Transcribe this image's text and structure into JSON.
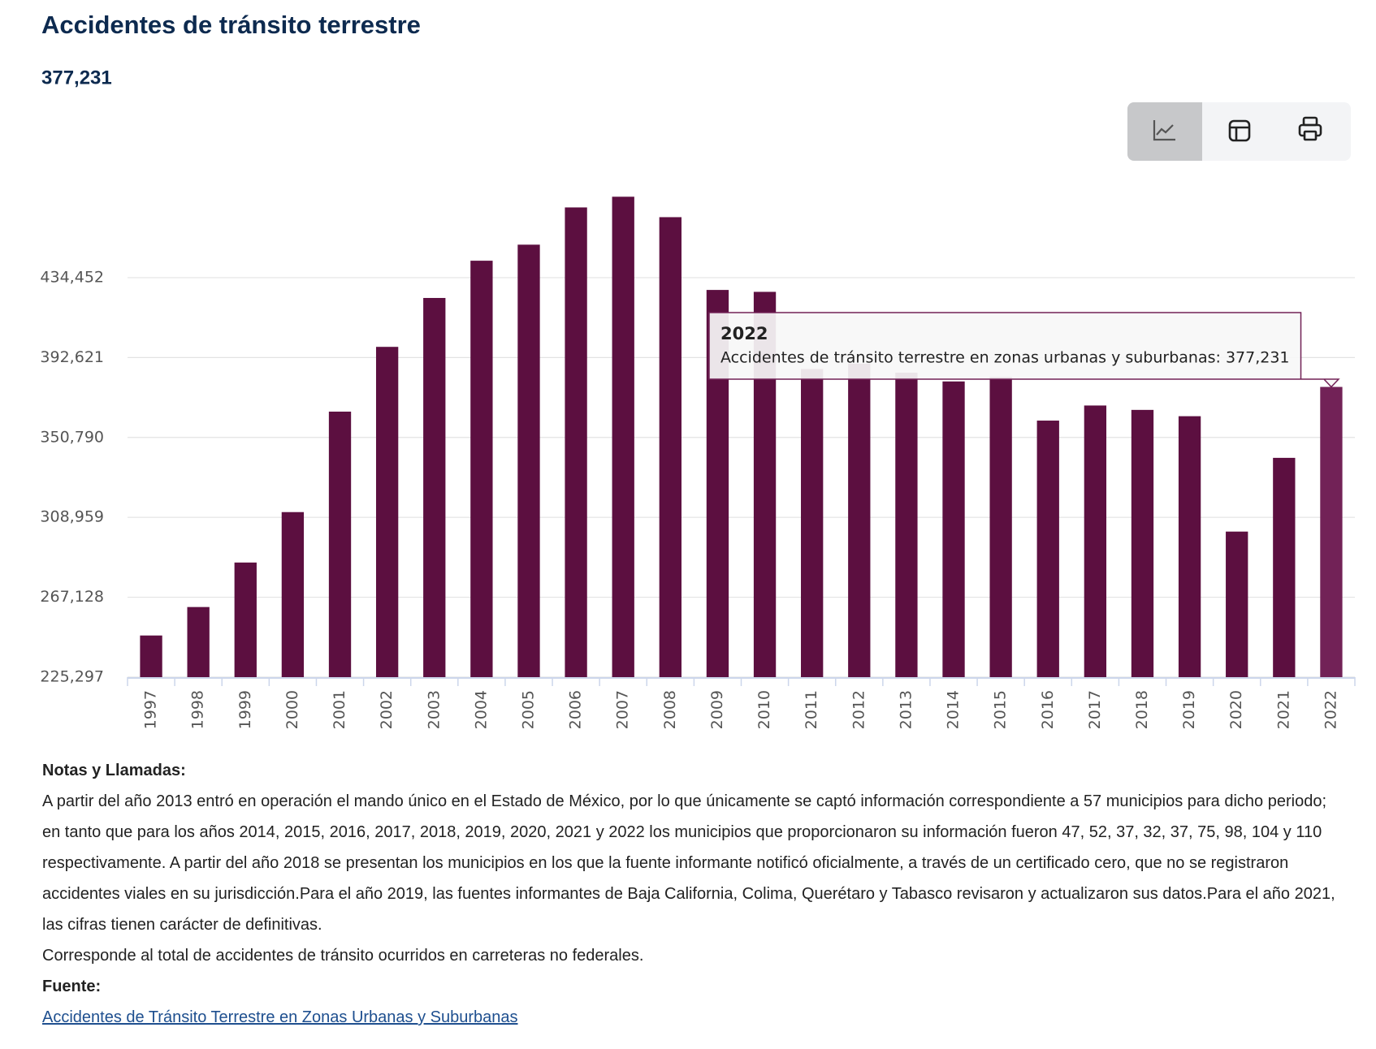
{
  "chart_data": {
    "type": "bar",
    "title": "Accidentes de tránsito terrestre",
    "subtitle": "377,231",
    "categories": [
      "1997",
      "1998",
      "1999",
      "2000",
      "2001",
      "2002",
      "2003",
      "2004",
      "2005",
      "2006",
      "2007",
      "2008",
      "2009",
      "2010",
      "2011",
      "2012",
      "2013",
      "2014",
      "2015",
      "2016",
      "2017",
      "2018",
      "2019",
      "2020",
      "2021",
      "2022"
    ],
    "series": [
      {
        "name": "Accidentes de tránsito terrestre en zonas urbanas y suburbanas",
        "color": "#5c0f40",
        "values": [
          247100,
          262000,
          285300,
          311700,
          364300,
          398200,
          423800,
          443300,
          451700,
          471200,
          476800,
          466100,
          428000,
          427000,
          386600,
          389400,
          384700,
          380100,
          382400,
          359600,
          367500,
          365200,
          361900,
          301500,
          340100,
          377231
        ]
      }
    ],
    "ylim": [
      225297,
      485000
    ],
    "yticks": [
      {
        "value": 225297,
        "label": "225,297"
      },
      {
        "value": 267128,
        "label": "267,128"
      },
      {
        "value": 308959,
        "label": "308,959"
      },
      {
        "value": 350790,
        "label": "350,790"
      },
      {
        "value": 392621,
        "label": "392,621"
      },
      {
        "value": 434452,
        "label": "434,452"
      }
    ],
    "grid": true,
    "highlight_color": "#722257",
    "tooltip": {
      "title": "2022",
      "text": "Accidentes de tránsito terrestre en zonas urbanas y suburbanas: 377,231"
    }
  },
  "notes": {
    "heading": "Notas y Llamadas:",
    "paragraphs": [
      "A partir del año 2013 entró en operación el mando único en el Estado de México, por lo que únicamente se captó información correspondiente a 57 municipios para dicho periodo; en tanto que para los años 2014, 2015, 2016, 2017, 2018, 2019, 2020, 2021 y 2022 los municipios que proporcionaron su información fueron 47, 52, 37, 32, 37, 75, 98, 104 y 110 respectivamente. A partir del año 2018 se presentan los municipios en los que la fuente informante notificó oficialmente, a través de un certificado cero, que no se registraron accidentes viales en su jurisdicción.Para el año 2019, las fuentes informantes de Baja California, Colima, Querétaro y Tabasco revisaron y actualizaron sus datos.Para el año 2021, las cifras tienen carácter de definitivas.",
      "Corresponde al total de accidentes de tránsito ocurridos en carreteras no federales."
    ]
  },
  "source": {
    "heading": "Fuente:",
    "link": "Accidentes de Tránsito Terrestre en Zonas Urbanas y Suburbanas"
  }
}
